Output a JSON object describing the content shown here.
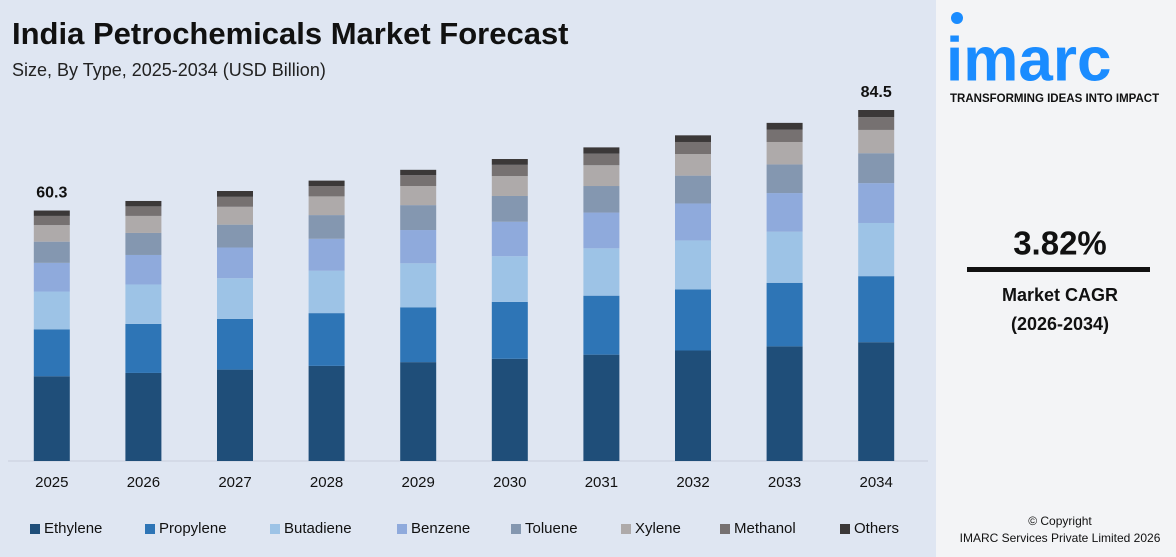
{
  "chart_data": {
    "type": "stacked-bar",
    "title": "India Petrochemicals Market Forecast",
    "subtitle": "Size, By Type, 2025-2034 (USD Billion)",
    "categories": [
      "2025",
      "2026",
      "2027",
      "2028",
      "2029",
      "2030",
      "2031",
      "2032",
      "2033",
      "2034"
    ],
    "series": [
      {
        "name": "Ethylene",
        "color": "#1f4e79",
        "values": [
          20.4,
          21.2,
          22.0,
          22.9,
          23.8,
          24.6,
          25.6,
          26.6,
          27.6,
          28.6
        ]
      },
      {
        "name": "Propylene",
        "color": "#2e75b6",
        "values": [
          11.3,
          11.8,
          12.2,
          12.7,
          13.2,
          13.7,
          14.2,
          14.7,
          15.3,
          15.9
        ]
      },
      {
        "name": "Butadiene",
        "color": "#9dc3e6",
        "values": [
          9.1,
          9.5,
          9.8,
          10.2,
          10.6,
          11.0,
          11.4,
          11.8,
          12.3,
          12.8
        ]
      },
      {
        "name": "Benzene",
        "color": "#8faadc",
        "values": [
          6.9,
          7.1,
          7.4,
          7.7,
          8.0,
          8.3,
          8.6,
          8.9,
          9.3,
          9.6
        ]
      },
      {
        "name": "Toluene",
        "color": "#8497b0",
        "values": [
          5.1,
          5.3,
          5.5,
          5.7,
          6.0,
          6.2,
          6.4,
          6.7,
          6.9,
          7.2
        ]
      },
      {
        "name": "Xylene",
        "color": "#aeaaaa",
        "values": [
          4.0,
          4.1,
          4.3,
          4.5,
          4.6,
          4.8,
          5.0,
          5.2,
          5.4,
          5.6
        ]
      },
      {
        "name": "Methanol",
        "color": "#767171",
        "values": [
          2.2,
          2.3,
          2.4,
          2.5,
          2.6,
          2.7,
          2.8,
          2.9,
          3.0,
          3.1
        ]
      },
      {
        "name": "Others",
        "color": "#3b3838",
        "values": [
          1.3,
          1.3,
          1.4,
          1.3,
          1.3,
          1.4,
          1.5,
          1.6,
          1.6,
          1.7
        ]
      }
    ],
    "annotations": [
      {
        "x": "2025",
        "text": "60.3"
      },
      {
        "x": "2034",
        "text": "84.5"
      }
    ]
  },
  "sidebar": {
    "logo": "imarc",
    "tagline": "TRANSFORMING IDEAS INTO IMPACT",
    "cagr": "3.82%",
    "cagr_label": "Market CAGR",
    "cagr_period": "(2026-2034)",
    "copyright": "© Copyright",
    "owner": "IMARC Services Private Limited 2026"
  }
}
